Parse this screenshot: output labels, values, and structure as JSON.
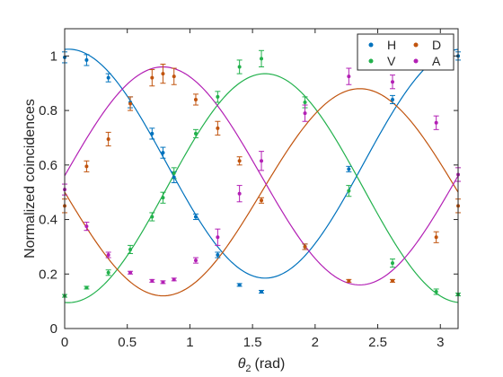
{
  "chart_data": {
    "type": "scatter",
    "xlabel": "(rad)",
    "xlabel_symbol": "θ",
    "xlabel_sub": "2",
    "ylabel": "Normalized coincidences",
    "xlim": [
      0,
      3.1416
    ],
    "ylim": [
      0,
      1.1
    ],
    "xticks": [
      0,
      0.5,
      1,
      1.5,
      2,
      2.5,
      3
    ],
    "xtick_labels": [
      "0",
      "0.5",
      "1",
      "1.5",
      "2",
      "2.5",
      "3"
    ],
    "yticks": [
      0,
      0.2,
      0.4,
      0.6,
      0.8,
      1
    ],
    "ytick_labels": [
      "0",
      "0.2",
      "0.4",
      "0.6",
      "0.8",
      "1"
    ],
    "grid": false,
    "legend_position": "top-right",
    "legend_columns": 2,
    "series": [
      {
        "name": "H",
        "color": "#0072BD",
        "x": [
          0,
          0.175,
          0.349,
          0.524,
          0.698,
          0.785,
          0.873,
          1.047,
          1.222,
          1.396,
          1.571,
          1.919,
          2.269,
          2.618,
          3.142
        ],
        "y": [
          0.995,
          0.985,
          0.92,
          0.83,
          0.715,
          0.645,
          0.555,
          0.41,
          0.27,
          0.16,
          0.135,
          0.3,
          0.585,
          0.84,
          1.0
        ],
        "err": [
          0.02,
          0.02,
          0.015,
          0.02,
          0.02,
          0.02,
          0.02,
          0.01,
          0.01,
          0.005,
          0.005,
          0.01,
          0.01,
          0.015,
          0.015
        ],
        "fit": {
          "offset": 0.605,
          "amp": 0.42,
          "freq": 2,
          "phase": 0.06
        }
      },
      {
        "name": "V",
        "color": "#22B14C",
        "x": [
          0,
          0.175,
          0.349,
          0.524,
          0.698,
          0.785,
          0.873,
          1.047,
          1.222,
          1.396,
          1.571,
          1.919,
          2.269,
          2.618,
          2.967,
          3.142
        ],
        "y": [
          0.12,
          0.15,
          0.205,
          0.29,
          0.41,
          0.48,
          0.57,
          0.715,
          0.85,
          0.96,
          0.99,
          0.83,
          0.505,
          0.24,
          0.135,
          0.125
        ],
        "err": [
          0.005,
          0.005,
          0.01,
          0.015,
          0.015,
          0.02,
          0.02,
          0.015,
          0.02,
          0.025,
          0.03,
          0.02,
          0.02,
          0.015,
          0.01,
          0.005
        ],
        "fit": {
          "offset": 0.515,
          "amp": 0.42,
          "freq": 2,
          "phase": 3.2
        }
      },
      {
        "name": "D",
        "color": "#C1540E",
        "x": [
          0,
          0.175,
          0.349,
          0.524,
          0.698,
          0.785,
          0.873,
          1.047,
          1.222,
          1.396,
          1.571,
          1.919,
          2.269,
          2.618,
          2.967,
          3.142
        ],
        "y": [
          0.45,
          0.595,
          0.695,
          0.825,
          0.92,
          0.935,
          0.925,
          0.84,
          0.735,
          0.615,
          0.47,
          0.3,
          0.175,
          0.175,
          0.335,
          0.45
        ],
        "err": [
          0.025,
          0.02,
          0.025,
          0.025,
          0.03,
          0.035,
          0.03,
          0.02,
          0.025,
          0.015,
          0.01,
          0.01,
          0.005,
          0.005,
          0.02,
          0.025
        ],
        "fit": {
          "offset": 0.5,
          "amp": 0.38,
          "freq": 2,
          "phase": -1.57
        }
      },
      {
        "name": "A",
        "color": "#B320B5",
        "x": [
          0,
          0.175,
          0.349,
          0.524,
          0.698,
          0.785,
          0.873,
          1.047,
          1.222,
          1.396,
          1.571,
          1.919,
          2.269,
          2.618,
          2.967,
          3.142
        ],
        "y": [
          0.51,
          0.375,
          0.27,
          0.205,
          0.175,
          0.17,
          0.18,
          0.25,
          0.335,
          0.495,
          0.615,
          0.79,
          0.925,
          0.905,
          0.755,
          0.565
        ],
        "err": [
          0.02,
          0.015,
          0.01,
          0.005,
          0.005,
          0.005,
          0.005,
          0.01,
          0.03,
          0.03,
          0.035,
          0.03,
          0.03,
          0.025,
          0.025,
          0.025
        ],
        "fit": {
          "offset": 0.56,
          "amp": 0.4,
          "freq": 2,
          "phase": 1.57
        }
      }
    ]
  }
}
